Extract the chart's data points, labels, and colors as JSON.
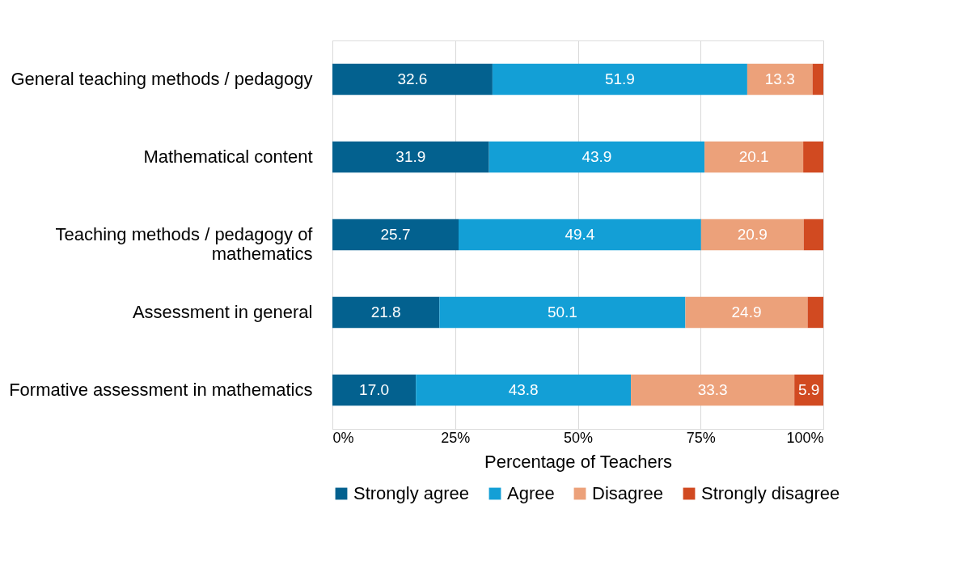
{
  "chart_data": {
    "type": "bar",
    "orientation": "horizontal",
    "stacked": true,
    "xlabel": "Percentage of Teachers",
    "categories": [
      "General teaching methods / pedagogy",
      "Mathematical content",
      "Teaching methods / pedagogy of\nmathematics",
      "Assessment in general",
      "Formative assessment in mathematics"
    ],
    "series": [
      {
        "name": "Strongly agree",
        "color": "#03618f",
        "values": [
          32.6,
          31.9,
          25.7,
          21.8,
          17.0
        ],
        "value_labels": [
          "32.6",
          "31.9",
          "25.7",
          "21.8",
          "17.0"
        ]
      },
      {
        "name": "Agree",
        "color": "#139fd6",
        "values": [
          51.9,
          43.9,
          49.4,
          50.1,
          43.8
        ],
        "value_labels": [
          "51.9",
          "43.9",
          "49.4",
          "50.1",
          "43.8"
        ]
      },
      {
        "name": "Disagree",
        "color": "#eca17a",
        "values": [
          13.3,
          20.1,
          20.9,
          24.9,
          33.3
        ],
        "value_labels": [
          "13.3",
          "20.1",
          "20.9",
          "24.9",
          "33.3"
        ]
      },
      {
        "name": "Strongly disagree",
        "color": "#d14a21",
        "values": [
          2.2,
          4.1,
          4.0,
          3.2,
          5.9
        ],
        "value_labels": [
          null,
          null,
          null,
          null,
          "5.9"
        ]
      }
    ],
    "xlim": [
      0,
      100
    ],
    "xticks": [
      {
        "value": 0,
        "label": "0%"
      },
      {
        "value": 25,
        "label": "25%"
      },
      {
        "value": 50,
        "label": "50%"
      },
      {
        "value": 75,
        "label": "75%"
      },
      {
        "value": 100,
        "label": "100%"
      }
    ],
    "grid": "x",
    "legend": "bottom"
  }
}
